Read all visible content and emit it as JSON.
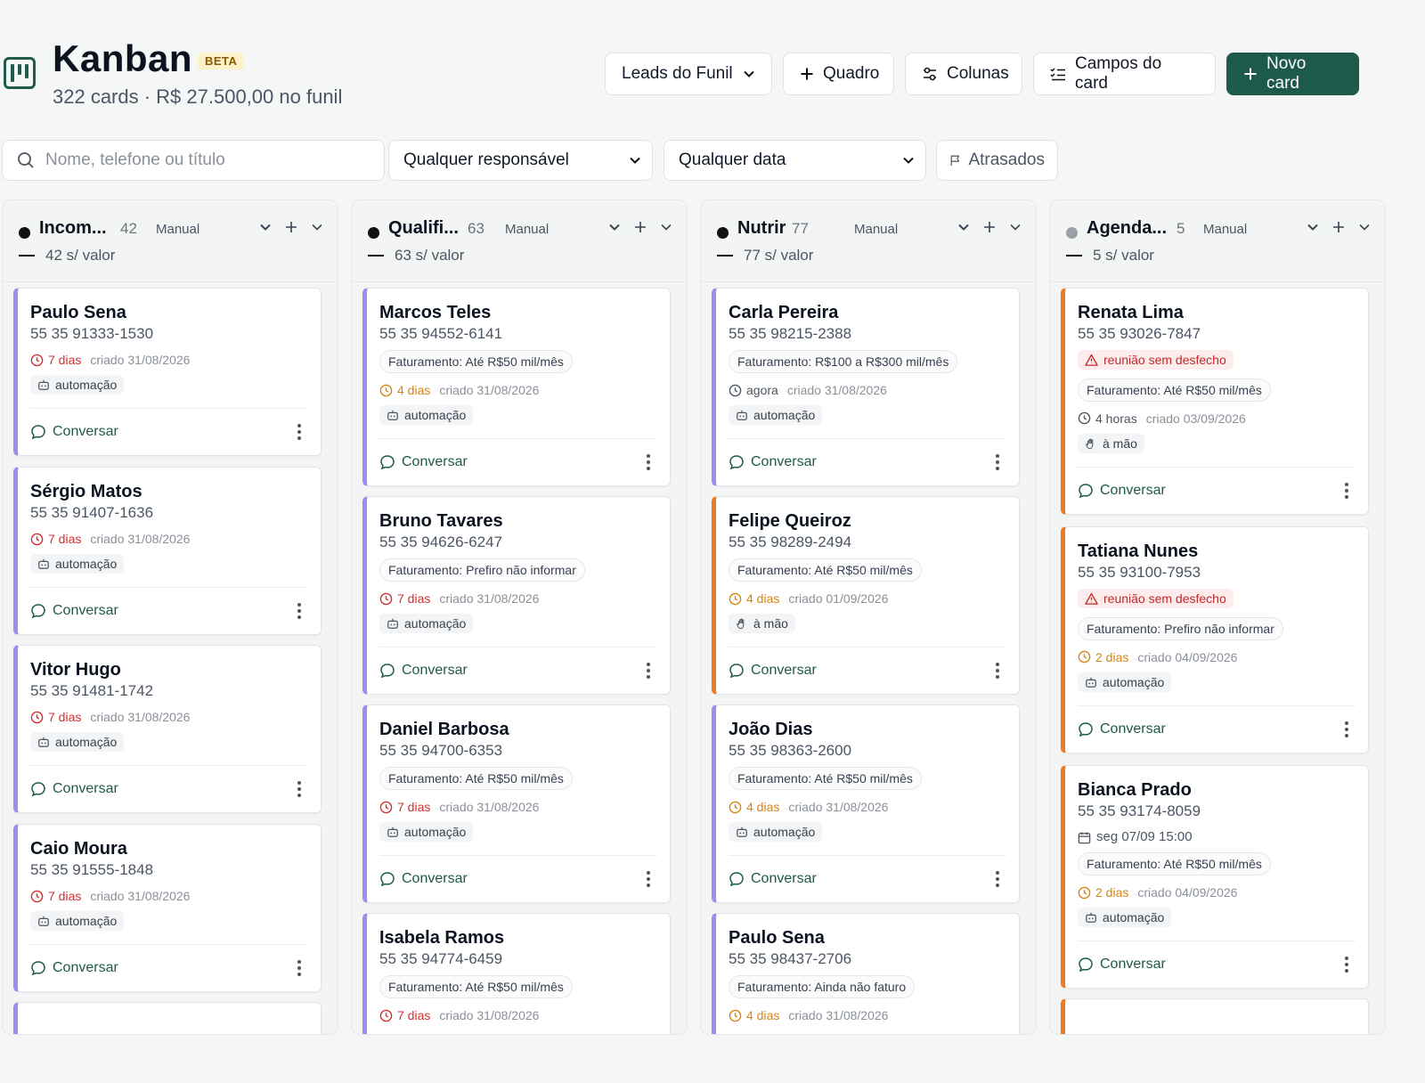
{
  "header": {
    "title": "Kanban",
    "badge": "BETA",
    "subtitle": "322 cards · R$ 27.500,00 no funil",
    "board_select": "Leads do Funil",
    "add_board": "Quadro",
    "columns_btn": "Colunas",
    "card_fields_btn": "Campos do card",
    "new_card_btn": "Novo card",
    "accent": "#1e5a4b"
  },
  "filters": {
    "search_placeholder": "Nome, telefone ou título",
    "responsible": "Qualquer responsável",
    "date": "Qualquer data",
    "late": "Atrasados"
  },
  "columns": [
    {
      "title": "Incom...",
      "count": "42",
      "mode": "Manual",
      "sub": "42 s/ valor",
      "dot": "#111111",
      "cards": [
        {
          "name": "Paulo Sena",
          "phone": "55 35 91333-1530",
          "time": "7 dias",
          "created": "criado 31/08/2026",
          "origin": "automação",
          "chat": "Conversar"
        },
        {
          "name": "Sérgio Matos",
          "phone": "55 35 91407-1636",
          "time": "7 dias",
          "created": "criado 31/08/2026",
          "origin": "automação",
          "chat": "Conversar"
        },
        {
          "name": "Vitor Hugo",
          "phone": "55 35 91481-1742",
          "time": "7 dias",
          "created": "criado 31/08/2026",
          "origin": "automação",
          "chat": "Conversar"
        },
        {
          "name": "Caio Moura",
          "phone": "55 35 91555-1848",
          "time": "7 dias",
          "created": "criado 31/08/2026",
          "origin": "automação",
          "chat": "Conversar"
        }
      ]
    },
    {
      "title": "Qualifi...",
      "count": "63",
      "mode": "Manual",
      "sub": "63 s/ valor",
      "dot": "#111111",
      "cards": [
        {
          "name": "Marcos Teles",
          "phone": "55 35 94552-6141",
          "revenue": "Faturamento: Até R$50 mil/mês",
          "time": "4 dias",
          "created": "criado 31/08/2026",
          "origin": "automação",
          "chat": "Conversar"
        },
        {
          "name": "Bruno Tavares",
          "phone": "55 35 94626-6247",
          "revenue": "Faturamento: Prefiro não informar",
          "time": "7 dias",
          "created": "criado 31/08/2026",
          "origin": "automação",
          "chat": "Conversar"
        },
        {
          "name": "Daniel Barbosa",
          "phone": "55 35 94700-6353",
          "revenue": "Faturamento: Até R$50 mil/mês",
          "time": "7 dias",
          "created": "criado 31/08/2026",
          "origin": "automação",
          "chat": "Conversar"
        },
        {
          "name": "Isabela Ramos",
          "phone": "55 35 94774-6459",
          "revenue": "Faturamento: Até R$50 mil/mês",
          "time": "7 dias",
          "created": "criado 31/08/2026"
        }
      ]
    },
    {
      "title": "Nutrir",
      "count": "77",
      "mode": "Manual",
      "sub": "77 s/ valor",
      "dot": "#111111",
      "cards": [
        {
          "name": "Carla Pereira",
          "phone": "55 35 98215-2388",
          "revenue": "Faturamento: R$100 a R$300 mil/mês",
          "time": "agora",
          "created": "criado 31/08/2026",
          "origin": "automação",
          "chat": "Conversar"
        },
        {
          "name": "Felipe Queiroz",
          "phone": "55 35 98289-2494",
          "revenue": "Faturamento: Até R$50 mil/mês",
          "time": "4 dias",
          "created": "criado 01/09/2026",
          "origin": "à mão",
          "chat": "Conversar"
        },
        {
          "name": "João Dias",
          "phone": "55 35 98363-2600",
          "revenue": "Faturamento: Até R$50 mil/mês",
          "time": "4 dias",
          "created": "criado 31/08/2026",
          "origin": "automação",
          "chat": "Conversar"
        },
        {
          "name": "Paulo Sena",
          "phone": "55 35 98437-2706",
          "revenue": "Faturamento: Ainda não faturo",
          "time": "4 dias",
          "created": "criado 31/08/2026"
        }
      ]
    },
    {
      "title": "Agenda...",
      "count": "5",
      "mode": "Manual",
      "sub": "5 s/ valor",
      "dot": "#9aa0a6",
      "cards": [
        {
          "name": "Renata Lima",
          "phone": "55 35 93026-7847",
          "alert": "reunião sem desfecho",
          "revenue": "Faturamento: Até R$50 mil/mês",
          "time": "4 horas",
          "created": "criado 03/09/2026",
          "origin": "à mão",
          "chat": "Conversar"
        },
        {
          "name": "Tatiana Nunes",
          "phone": "55 35 93100-7953",
          "alert": "reunião sem desfecho",
          "revenue": "Faturamento: Prefiro não informar",
          "time": "2 dias",
          "created": "criado 04/09/2026",
          "origin": "automação",
          "chat": "Conversar"
        },
        {
          "name": "Bianca Prado",
          "phone": "55 35 93174-8059",
          "schedule": "seg 07/09 15:00",
          "revenue": "Faturamento: Até R$50 mil/mês",
          "time": "2 dias",
          "created": "criado 04/09/2026",
          "origin": "automação",
          "chat": "Conversar"
        }
      ]
    }
  ]
}
